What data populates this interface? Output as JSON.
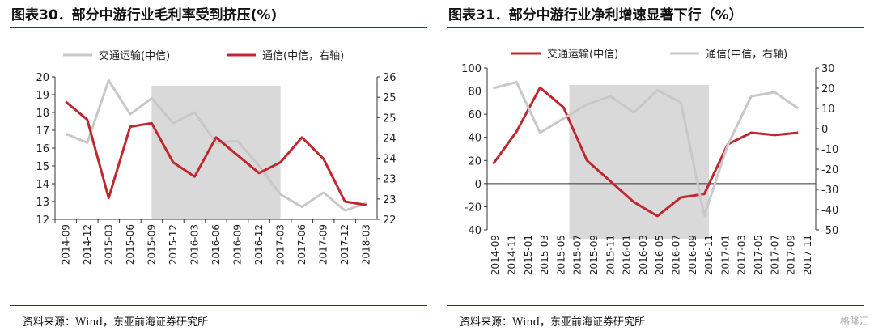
{
  "chart_data": [
    {
      "type": "line",
      "title": "图表30．部分中游行业毛利率受到挤压(%)",
      "source": "资料来源：Wind，东亚前海证券研究所",
      "x": [
        "2014-09",
        "2014-12",
        "2015-03",
        "2015-06",
        "2015-09",
        "2015-12",
        "2016-03",
        "2016-06",
        "2016-09",
        "2016-12",
        "2017-03",
        "2017-06",
        "2017-09",
        "2017-12",
        "2018-03"
      ],
      "ylim_left": [
        12,
        20
      ],
      "yticks_left": [
        "12",
        "13",
        "14",
        "15",
        "16",
        "17",
        "18",
        "19",
        "20"
      ],
      "ylim_right": [
        22,
        26
      ],
      "yticks_right": [
        "22",
        "23",
        "23",
        "24",
        "24",
        "25",
        "25",
        "26"
      ],
      "shade": [
        "2015-09",
        "2017-03"
      ],
      "legend_placement": "top",
      "series": [
        {
          "name": "交通运输(中信)",
          "axis": "left",
          "color": "#c8c8c8",
          "values": [
            16.8,
            16.3,
            19.8,
            17.9,
            18.8,
            17.4,
            18.0,
            16.3,
            16.4,
            15.0,
            13.4,
            12.7,
            13.5,
            12.5,
            12.9
          ]
        },
        {
          "name": "通信(中信，右轴)",
          "axis": "right",
          "color": "#c0282f",
          "values": [
            25.3,
            24.8,
            22.6,
            24.6,
            24.7,
            23.6,
            23.2,
            24.3,
            23.8,
            23.3,
            23.6,
            24.3,
            23.7,
            22.5,
            22.4
          ]
        }
      ]
    },
    {
      "type": "line",
      "title": "图表31．部分中游行业净利增速显著下行（%）",
      "source": "资料来源：Wind，东亚前海证券研究所",
      "x": [
        "2014-09",
        "2014-11",
        "2015-01",
        "2015-03",
        "2015-05",
        "2015-07",
        "2015-09",
        "2015-11",
        "2016-01",
        "2016-03",
        "2016-05",
        "2016-07",
        "2016-09",
        "2016-11",
        "2017-01",
        "2017-03",
        "2017-05",
        "2017-07",
        "2017-09",
        "2017-11"
      ],
      "ylim_left": [
        -40,
        100
      ],
      "yticks_left": [
        "-40",
        "-20",
        "0",
        "20",
        "40",
        "60",
        "80",
        "100"
      ],
      "ylim_right": [
        -50,
        30
      ],
      "yticks_right": [
        "-50",
        "-40",
        "-30",
        "-20",
        "-10",
        "0",
        "10",
        "20",
        "30"
      ],
      "shade": [
        "2015-07",
        "2017-01"
      ],
      "legend_placement": "top",
      "series": [
        {
          "name": "交通运输(中信)",
          "axis": "left",
          "color": "#c0282f",
          "values": [
            null,
            null,
            null,
            null,
            null,
            null,
            null,
            null,
            null,
            null,
            null,
            null,
            null,
            null,
            null,
            null,
            null,
            null,
            null,
            null
          ],
          "points": [
            [
              0,
              17
            ],
            [
              2,
              45
            ],
            [
              4,
              83
            ],
            [
              6,
              66
            ],
            [
              8,
              20
            ],
            [
              10,
              2
            ],
            [
              12,
              -16
            ],
            [
              14,
              -28
            ],
            [
              16,
              -12
            ],
            [
              18,
              -9
            ],
            [
              20,
              34
            ],
            [
              22,
              44
            ],
            [
              24,
              42
            ],
            [
              26,
              44
            ]
          ]
        },
        {
          "name": "通信(中信，右轴)",
          "axis": "right",
          "color": "#c8c8c8",
          "points": [
            [
              0,
              20
            ],
            [
              2,
              23
            ],
            [
              4,
              -2
            ],
            [
              6,
              5
            ],
            [
              8,
              12
            ],
            [
              10,
              16
            ],
            [
              12,
              8
            ],
            [
              14,
              19
            ],
            [
              16,
              13
            ],
            [
              18,
              -43
            ],
            [
              20,
              -8
            ],
            [
              22,
              16
            ],
            [
              24,
              18
            ],
            [
              26,
              10
            ]
          ]
        }
      ]
    }
  ],
  "watermark": "格隆汇"
}
